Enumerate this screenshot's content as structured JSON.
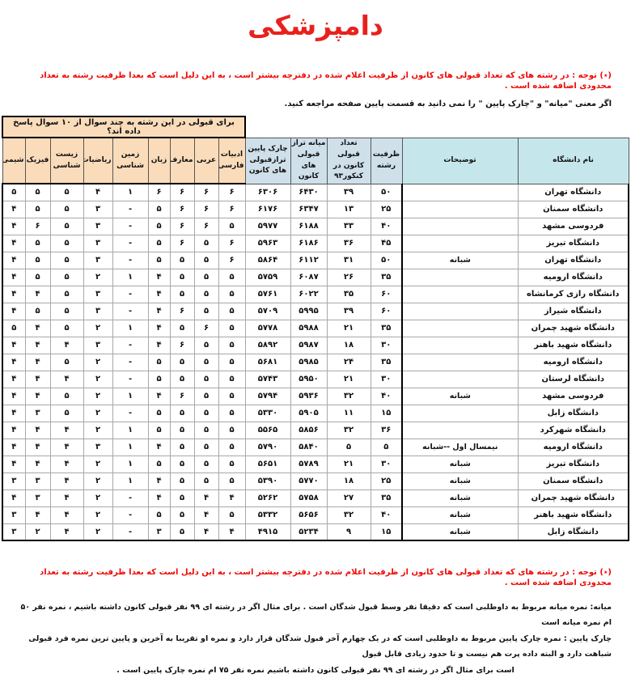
{
  "title": "دامپزشکی",
  "notes": {
    "top_red": "(٭) توجه : در رشته های که تعداد قبولی های کانون از ظرفیت اعلام شده در دفترچه بیشتر است ، به این دلیل است که بعدا ظرفیت رشته به تعداد محدودی اضافه شده است .",
    "top_black": "اگر معنی \"میانه\"  و  \"چارک پایین \" را نمی دانید به قسمت پایین صفحه مراجعه کنید.",
    "bottom_red": "(٭) توجه : در رشته های که تعداد قبولی های کانون از ظرفیت اعلام شده در دفترچه بیشتر است ، به این دلیل است که بعدا ظرفیت رشته به تعداد محدودی اضافه شده است .",
    "bottom_black_lines": [
      "میانه: نمره میانه مربوط به داوطلبی است که دقیقا نفر وسط قبول شدگان است . برای مثال اگر در رشته ای ۹۹ نفر قبولی کانون داشته باشیم ، نمره نفر ۵۰ ام نمره میانه است",
      "چارک پایین : نمره چارک پایین مربوط به داوطلبی است که در یک چهارم آخر قبول شدگان قرار دارد و نمره او تقریبا به آخرین و پایین ترین نمره فرد قبولی شباهت دارد و البته داده پرت هم نیست و تا حدود زیادی قابل قبول",
      "است برای مثال اگر در رشته ای ۹۹ نفر قبولی کانون داشته باشیم نمره نفر ۷۵ ام نمره چارک پایین است ."
    ]
  },
  "table": {
    "span_header": "برای قبولی در این رشته به چند سوال از ۱۰ سوال پاسخ داده اند؟",
    "headers": {
      "name": "نام دانشگاه",
      "desc": "توضیحات",
      "capacity": "ظرفیت رشته",
      "accepted": "تعداد قبولی کانون در کنکور۹۳",
      "median": "میانه تراز قبولی های کانون",
      "quartile": "چارک پایین ترازقبولی های کانون",
      "subjects": [
        "ادبیات فارسی",
        "عربی",
        "معارف",
        "زبان",
        "زمین شناسی",
        "ریاضیات",
        "زیست شناسی",
        "فیزیک",
        "شیمی"
      ]
    },
    "rows": [
      {
        "name": "دانشگاه تهران",
        "desc": "",
        "capacity": "۵۰",
        "accepted": "۳۹",
        "median": "۶۴۳۰",
        "quartile": "۶۳۰۶",
        "subjects": [
          "۶",
          "۶",
          "۶",
          "۶",
          "۱",
          "۴",
          "۵",
          "۵",
          "۵"
        ]
      },
      {
        "name": "دانشگاه سمنان",
        "desc": "",
        "capacity": "۲۵",
        "accepted": "۱۳",
        "median": "۶۳۴۷",
        "quartile": "۶۱۷۶",
        "subjects": [
          "۶",
          "۶",
          "۶",
          "۵",
          "-",
          "۳",
          "۵",
          "۵",
          "۴"
        ]
      },
      {
        "name": "فردوسی مشهد",
        "desc": "",
        "capacity": "۴۰",
        "accepted": "۳۳",
        "median": "۶۱۸۸",
        "quartile": "۵۹۷۷",
        "subjects": [
          "۵",
          "۶",
          "۶",
          "۵",
          "-",
          "۳",
          "۵",
          "۶",
          "۴"
        ]
      },
      {
        "name": "دانشگاه تبریز",
        "desc": "",
        "capacity": "۴۵",
        "accepted": "۳۶",
        "median": "۶۱۸۶",
        "quartile": "۵۹۶۳",
        "subjects": [
          "۶",
          "۵",
          "۶",
          "۵",
          "-",
          "۳",
          "۵",
          "۵",
          "۴"
        ]
      },
      {
        "name": "دانشگاه تهران",
        "desc": "شبانه",
        "capacity": "۵۰",
        "accepted": "۳۱",
        "median": "۶۱۱۲",
        "quartile": "۵۸۶۴",
        "subjects": [
          "۶",
          "۵",
          "۵",
          "۵",
          "-",
          "۳",
          "۵",
          "۵",
          "۴"
        ]
      },
      {
        "name": "دانشگاه ارومیه",
        "desc": "",
        "capacity": "۳۵",
        "accepted": "۲۶",
        "median": "۶۰۸۷",
        "quartile": "۵۷۵۹",
        "subjects": [
          "۵",
          "۵",
          "۵",
          "۴",
          "۱",
          "۲",
          "۵",
          "۵",
          "۴"
        ]
      },
      {
        "name": "دانشگاه رازی کرمانشاه",
        "desc": "",
        "capacity": "۶۰",
        "accepted": "۳۵",
        "median": "۶۰۲۲",
        "quartile": "۵۷۶۱",
        "subjects": [
          "۵",
          "۵",
          "۵",
          "۴",
          "-",
          "۳",
          "۵",
          "۴",
          "۴"
        ]
      },
      {
        "name": "دانشگاه شیراز",
        "desc": "",
        "capacity": "۶۰",
        "accepted": "۳۹",
        "median": "۵۹۹۵",
        "quartile": "۵۷۰۹",
        "subjects": [
          "۵",
          "۵",
          "۶",
          "۴",
          "-",
          "۳",
          "۵",
          "۵",
          "۴"
        ]
      },
      {
        "name": "دانشگاه شهید چمران",
        "desc": "",
        "capacity": "۳۵",
        "accepted": "۲۱",
        "median": "۵۹۸۸",
        "quartile": "۵۷۷۸",
        "subjects": [
          "۵",
          "۶",
          "۵",
          "۴",
          "۱",
          "۲",
          "۵",
          "۴",
          "۵"
        ]
      },
      {
        "name": "دانشگاه شهید باهنر",
        "desc": "",
        "capacity": "۳۰",
        "accepted": "۱۸",
        "median": "۵۹۸۷",
        "quartile": "۵۸۹۲",
        "subjects": [
          "۵",
          "۵",
          "۶",
          "۴",
          "-",
          "۳",
          "۴",
          "۴",
          "۴"
        ]
      },
      {
        "name": "دانشگاه ارومیه",
        "desc": "",
        "capacity": "۳۵",
        "accepted": "۲۴",
        "median": "۵۹۸۵",
        "quartile": "۵۶۸۱",
        "subjects": [
          "۵",
          "۵",
          "۵",
          "۵",
          "-",
          "۲",
          "۵",
          "۴",
          "۴"
        ]
      },
      {
        "name": "دانشگاه لرستان",
        "desc": "",
        "capacity": "۳۰",
        "accepted": "۲۱",
        "median": "۵۹۵۰",
        "quartile": "۵۷۴۳",
        "subjects": [
          "۵",
          "۵",
          "۵",
          "۵",
          "-",
          "۲",
          "۴",
          "۴",
          "۴"
        ]
      },
      {
        "name": "فردوسی مشهد",
        "desc": "شبانه",
        "capacity": "۴۰",
        "accepted": "۳۲",
        "median": "۵۹۳۶",
        "quartile": "۵۷۹۴",
        "subjects": [
          "۵",
          "۵",
          "۶",
          "۴",
          "۱",
          "۲",
          "۵",
          "۴",
          "۴"
        ]
      },
      {
        "name": "دانشگاه زابل",
        "desc": "",
        "capacity": "۱۵",
        "accepted": "۱۱",
        "median": "۵۹۰۵",
        "quartile": "۵۳۳۰",
        "subjects": [
          "۵",
          "۵",
          "۵",
          "۵",
          "-",
          "۲",
          "۵",
          "۳",
          "۴"
        ]
      },
      {
        "name": "دانشگاه شهرکرد",
        "desc": "",
        "capacity": "۳۶",
        "accepted": "۳۲",
        "median": "۵۸۵۶",
        "quartile": "۵۵۶۵",
        "subjects": [
          "۵",
          "۵",
          "۵",
          "۵",
          "۱",
          "۲",
          "۴",
          "۴",
          "۴"
        ]
      },
      {
        "name": "دانشگاه ارومیه",
        "desc": "نیمسال اول --شبانه",
        "capacity": "۵",
        "accepted": "۵",
        "median": "۵۸۴۰",
        "quartile": "۵۷۹۰",
        "subjects": [
          "۵",
          "۵",
          "۵",
          "۴",
          "۱",
          "۳",
          "۴",
          "۴",
          "۴"
        ]
      },
      {
        "name": "دانشگاه تبریز",
        "desc": "شبانه",
        "capacity": "۳۰",
        "accepted": "۲۱",
        "median": "۵۷۸۹",
        "quartile": "۵۶۵۱",
        "subjects": [
          "۵",
          "۵",
          "۵",
          "۵",
          "۱",
          "۲",
          "۴",
          "۴",
          "۴"
        ]
      },
      {
        "name": "دانشگاه سمنان",
        "desc": "شبانه",
        "capacity": "۲۵",
        "accepted": "۱۸",
        "median": "۵۷۷۰",
        "quartile": "۵۳۹۰",
        "subjects": [
          "۵",
          "۵",
          "۵",
          "۴",
          "۱",
          "۲",
          "۴",
          "۳",
          "۳"
        ]
      },
      {
        "name": "دانشگاه شهید چمران",
        "desc": "شبانه",
        "capacity": "۳۵",
        "accepted": "۲۷",
        "median": "۵۷۵۸",
        "quartile": "۵۲۶۲",
        "subjects": [
          "۴",
          "۴",
          "۵",
          "۴",
          "-",
          "۲",
          "۴",
          "۳",
          "۴"
        ]
      },
      {
        "name": "دانشگاه شهید باهنر",
        "desc": "شبانه",
        "capacity": "۴۰",
        "accepted": "۳۲",
        "median": "۵۶۵۶",
        "quartile": "۵۳۳۲",
        "subjects": [
          "۵",
          "۴",
          "۵",
          "۵",
          "-",
          "۲",
          "۴",
          "۴",
          "۳"
        ]
      },
      {
        "name": "دانشگاه زابل",
        "desc": "شبانه",
        "capacity": "۱۵",
        "accepted": "۹",
        "median": "۵۲۳۴",
        "quartile": "۴۹۱۵",
        "subjects": [
          "۴",
          "۴",
          "۵",
          "۳",
          "-",
          "۲",
          "۴",
          "۲",
          "۳"
        ]
      }
    ]
  },
  "colors": {
    "title_red": "#e8211d",
    "note_red": "#ee0b07",
    "subject_header_peach": "#fbdcba",
    "stat_header_blue": "#cfe0ea",
    "name_header_cyan": "#c5e7ec"
  }
}
